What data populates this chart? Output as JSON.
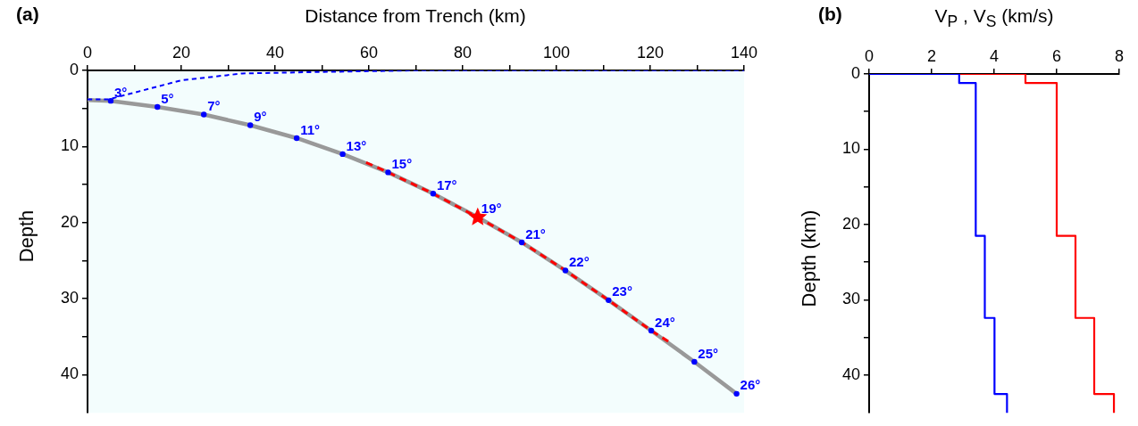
{
  "chart_data": [
    {
      "type": "line",
      "title": "(a)",
      "xlabel": "Distance from Trench (km)",
      "ylabel": "Depth",
      "grid": false,
      "legend": false,
      "xlim": [
        0,
        140
      ],
      "xticks": [
        0,
        {
          "value": 10,
          "label": null
        },
        20,
        {
          "value": 30,
          "label": null
        },
        40,
        {
          "value": 50,
          "label": null
        },
        60,
        {
          "value": 70,
          "label": null
        },
        80,
        {
          "value": 90,
          "label": null
        },
        100,
        {
          "value": 110,
          "label": null
        },
        120,
        {
          "value": 130,
          "label": null
        },
        140
      ],
      "ylim": [
        45,
        0
      ],
      "yticks": [
        0,
        {
          "value": 5,
          "label": null
        },
        10,
        {
          "value": 15,
          "label": null
        },
        20,
        {
          "value": 25,
          "label": null
        },
        30,
        {
          "value": 35,
          "label": null
        },
        40
      ],
      "series": [
        {
          "type": "line",
          "color": "#999999",
          "marker": "none",
          "line_style": "solid",
          "x": [
            0,
            4.95,
            14.9,
            24.8,
            34.7,
            44.6,
            54.4,
            64.1,
            73.7,
            83.2,
            92.6,
            101.9,
            111.1,
            120.2,
            129.4,
            138.4
          ],
          "values": [
            3.9,
            4.0,
            4.8,
            5.8,
            7.2,
            8.9,
            11.0,
            13.4,
            16.2,
            19.3,
            22.6,
            26.3,
            30.2,
            34.2,
            38.3,
            42.5
          ]
        },
        {
          "type": "line",
          "color": "#ff0000",
          "marker": "none",
          "line_style": "dashed",
          "x": [
            59.4,
            64.1,
            73.7,
            83.2,
            92.6,
            101.9,
            111.1,
            120.2,
            124.3
          ],
          "values": [
            12.1,
            13.4,
            16.2,
            19.3,
            22.6,
            26.3,
            30.2,
            34.2,
            35.8
          ]
        },
        {
          "type": "line",
          "color": "#0000ff",
          "marker": "none",
          "line_style": "dashed",
          "x": [
            0,
            4.5,
            20,
            33,
            50,
            70,
            140
          ],
          "values": [
            3.8,
            3.8,
            1.3,
            0.4,
            0.2,
            0,
            0
          ]
        },
        {
          "type": "scatter",
          "color": "#0000ff",
          "marker": "circle",
          "x": [
            4.95,
            14.9,
            24.8,
            34.7,
            44.6,
            54.4,
            64.1,
            73.7,
            92.6,
            101.9,
            111.1,
            120.2,
            129.4,
            138.4
          ],
          "values": [
            4.0,
            4.8,
            5.8,
            7.2,
            8.9,
            11.0,
            13.4,
            16.2,
            22.6,
            26.3,
            30.2,
            34.2,
            38.3,
            42.5
          ]
        },
        {
          "type": "scatter",
          "color": "#ff0000",
          "marker": "star",
          "x": [
            83.2
          ],
          "values": [
            19.3
          ]
        }
      ],
      "annotations": [
        {
          "text": "3°",
          "x": 4.95,
          "y": 4.0
        },
        {
          "text": "5°",
          "x": 14.9,
          "y": 4.8
        },
        {
          "text": "7°",
          "x": 24.8,
          "y": 5.8
        },
        {
          "text": "9°",
          "x": 34.7,
          "y": 7.2
        },
        {
          "text": "11°",
          "x": 44.6,
          "y": 8.9
        },
        {
          "text": "13°",
          "x": 54.4,
          "y": 11.0
        },
        {
          "text": "15°",
          "x": 64.1,
          "y": 13.4
        },
        {
          "text": "17°",
          "x": 73.7,
          "y": 16.2
        },
        {
          "text": "19°",
          "x": 83.2,
          "y": 19.3
        },
        {
          "text": "21°",
          "x": 92.6,
          "y": 22.6
        },
        {
          "text": "22°",
          "x": 101.9,
          "y": 26.3
        },
        {
          "text": "23°",
          "x": 111.1,
          "y": 30.2
        },
        {
          "text": "24°",
          "x": 120.2,
          "y": 34.2
        },
        {
          "text": "25°",
          "x": 129.4,
          "y": 38.3
        },
        {
          "text": "26°",
          "x": 138.4,
          "y": 42.5
        }
      ]
    },
    {
      "type": "line",
      "title": "(b)",
      "xlabel": "V$_{P}$ , V$_{S}$  (km/s)",
      "ylabel": "Depth (km)",
      "grid": false,
      "legend": false,
      "xlim": [
        0,
        8
      ],
      "xticks": [
        0,
        2,
        4,
        6,
        8
      ],
      "ylim": [
        45,
        0
      ],
      "yticks": [
        0,
        {
          "value": 5,
          "label": null
        },
        10,
        {
          "value": 15,
          "label": null
        },
        20,
        {
          "value": 25,
          "label": null
        },
        30,
        {
          "value": 35,
          "label": null
        },
        40
      ],
      "series": [
        {
          "type": "line",
          "color": "#ff0000",
          "marker": "none",
          "line_style": "solid",
          "x": [
            1.48,
            5.0,
            5.0,
            6.0,
            6.0,
            6.6,
            6.6,
            7.2,
            7.2,
            7.83,
            7.83
          ],
          "values": [
            0,
            0,
            1.2,
            1.2,
            21.5,
            21.5,
            32.4,
            32.4,
            42.5,
            42.5,
            45
          ]
        },
        {
          "type": "line",
          "color": "#0000ff",
          "marker": "none",
          "line_style": "solid",
          "x": [
            0,
            2.88,
            2.88,
            3.41,
            3.41,
            3.7,
            3.7,
            4.01,
            4.01,
            4.41,
            4.41
          ],
          "values": [
            0,
            0,
            1.2,
            1.2,
            21.5,
            21.5,
            32.4,
            32.4,
            42.5,
            42.5,
            45
          ]
        }
      ]
    }
  ]
}
